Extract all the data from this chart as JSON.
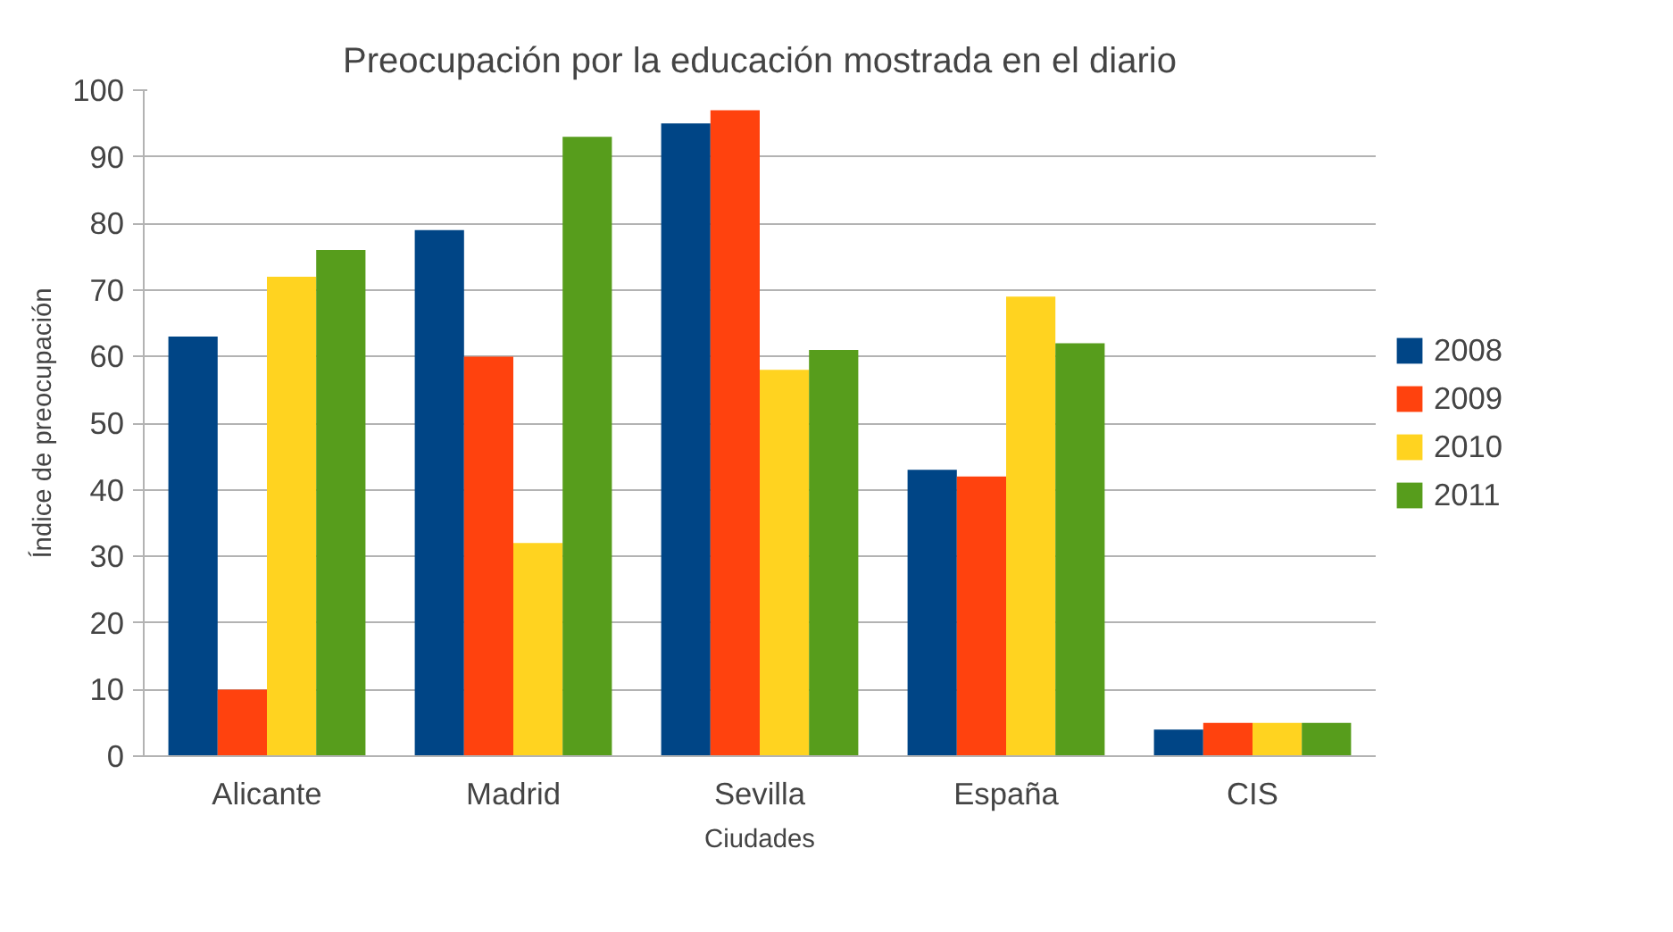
{
  "chart_data": {
    "type": "bar",
    "title": "Preocupación por la educación mostrada en el diario",
    "xlabel": "Ciudades",
    "ylabel": "Índice de preocupación",
    "categories": [
      "Alicante",
      "Madrid",
      "Sevilla",
      "España",
      "CIS"
    ],
    "series": [
      {
        "name": "2008",
        "color": "#004586",
        "values": [
          63,
          79,
          95,
          43,
          4
        ]
      },
      {
        "name": "2009",
        "color": "#ff420e",
        "values": [
          10,
          60,
          97,
          42,
          5
        ]
      },
      {
        "name": "2010",
        "color": "#ffd320",
        "values": [
          72,
          32,
          58,
          69,
          5
        ]
      },
      {
        "name": "2011",
        "color": "#579d1c",
        "values": [
          76,
          93,
          61,
          62,
          5
        ]
      }
    ],
    "ylim": [
      0,
      100
    ],
    "yticks": [
      0,
      10,
      20,
      30,
      40,
      50,
      60,
      70,
      80,
      90,
      100
    ],
    "grid": "y",
    "legend": "right"
  }
}
